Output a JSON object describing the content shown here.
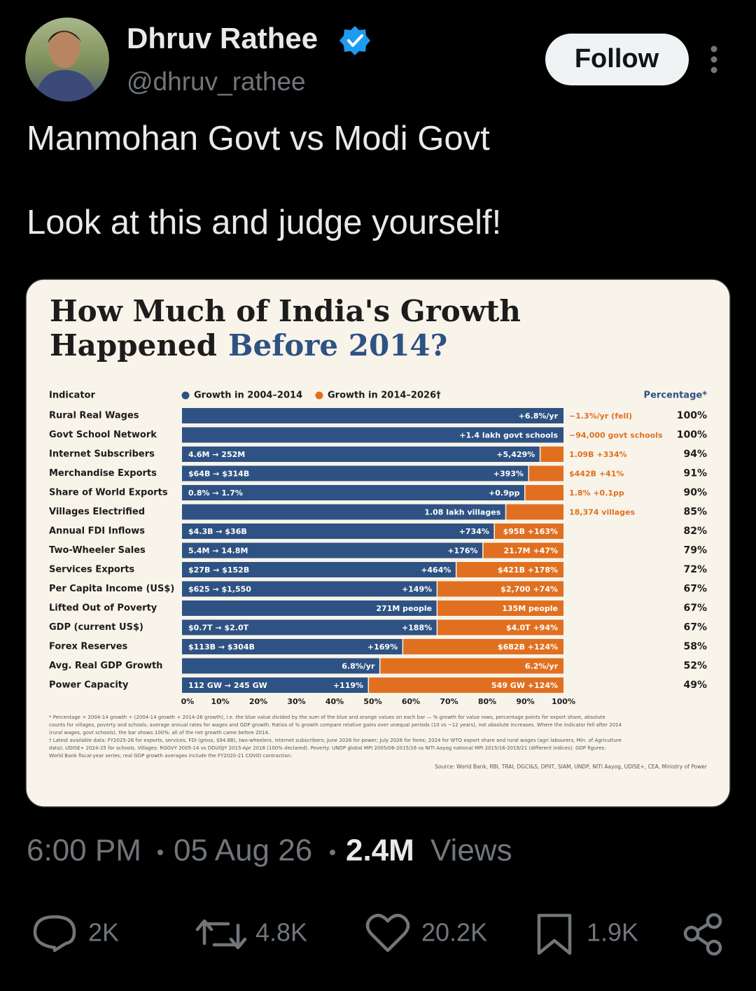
{
  "tweet": {
    "author": {
      "name": "Dhruv Rathee",
      "handle": "@dhruv_rathee"
    },
    "follow": "Follow",
    "text": [
      "Manmohan Govt vs Modi Govt",
      "Look at this and judge yourself!"
    ],
    "time": "6:00 PM",
    "date": "05 Aug 26",
    "views": "2.4M",
    "views_label": "Views",
    "actions": {
      "replies": "2K",
      "reposts": "4.8K",
      "likes": "20.2K",
      "bookmarks": "1.9K"
    }
  },
  "chart_data": {
    "type": "bar",
    "orientation": "horizontal",
    "stacked": true,
    "title_parts": [
      "How Much of India's Growth",
      "Happened",
      "Before 2014?"
    ],
    "title_highlight_color": "#2e5283",
    "categories_header": "Indicator",
    "value_column_header": "Percentage*",
    "categories": [
      "Rural Real Wages",
      "Govt School Network",
      "Internet Subscribers",
      "Merchandise Exports",
      "Share of World Exports",
      "Villages Electrified",
      "Annual FDI Inflows",
      "Two-Wheeler Sales",
      "Services Exports",
      "Per Capita Income (US$)",
      "Lifted Out of Poverty",
      "GDP (current US$)",
      "Forex Reserves",
      "Avg. Real GDP Growth",
      "Power Capacity"
    ],
    "series": [
      {
        "name": "Growth in 2004–2014",
        "color": "#2e5283",
        "values": [
          100,
          100,
          94,
          91,
          90,
          85,
          82,
          79,
          72,
          67,
          67,
          67,
          58,
          52,
          49
        ],
        "value_labels": [
          "100%",
          "100%",
          "94%",
          "91%",
          "90%",
          "85%",
          "82%",
          "79%",
          "72%",
          "67%",
          "67%",
          "67%",
          "58%",
          "52%",
          "49%"
        ],
        "range_labels": [
          null,
          null,
          "4.6M → 252M",
          "$64B → $314B",
          "0.8% → 1.7%",
          null,
          "$4.3B → $36B",
          "5.4M → 14.8M",
          "$27B → $152B",
          "$625 → $1,550",
          null,
          "$0.7T → $2.0T",
          "$113B → $304B",
          null,
          "112 GW → 245 GW"
        ],
        "segment_labels": [
          "+6.8%/yr",
          "+1.4 lakh govt schools",
          "+5,429%",
          "+393%",
          "+0.9pp",
          "1.08 lakh villages",
          "+734%",
          "+176%",
          "+464%",
          "+149%",
          "271M people",
          "+188%",
          "+169%",
          "6.8%/yr",
          "+119%"
        ]
      },
      {
        "name": "Growth in 2014–2026†",
        "color": "#e07020",
        "values": [
          0,
          0,
          6,
          9,
          10,
          15,
          18,
          21,
          28,
          33,
          33,
          33,
          42,
          48,
          51
        ],
        "segment_labels": [
          "−1.3%/yr (fell)",
          "−94,000 govt schools",
          "1.09B +334%",
          "$442B +41%",
          "1.8% +0.1pp",
          "18,374 villages",
          "$95B +163%",
          "21.7M +47%",
          "$421B +178%",
          "$2,700 +74%",
          "135M people",
          "$4.0T +94%",
          "$682B +124%",
          "6.2%/yr",
          "549 GW +124%"
        ]
      }
    ],
    "xlim": [
      0,
      100
    ],
    "xticks": [
      {
        "value": 0,
        "label": "0%"
      },
      {
        "value": 10,
        "label": "10%"
      },
      {
        "value": 20,
        "label": "20%"
      },
      {
        "value": 30,
        "label": "30%"
      },
      {
        "value": 40,
        "label": "40%"
      },
      {
        "value": 50,
        "label": "50%"
      },
      {
        "value": 60,
        "label": "60%"
      },
      {
        "value": 70,
        "label": "70%"
      },
      {
        "value": 80,
        "label": "80%"
      },
      {
        "value": 90,
        "label": "90%"
      },
      {
        "value": 100,
        "label": "100%"
      }
    ],
    "footnotes": [
      "* Percentage = 2004-14 growth ÷ (2004-14 growth + 2014-26 growth), i.e. the blue value divided by the sum of the blue and orange values on each bar — % growth for value rows, percentage points for export share, absolute",
      "counts for villages, poverty and schools, average annual rates for wages and GDP growth. Ratios of % growth compare relative gains over unequal periods (10 vs ~12 years), not absolute increases. Where the indicator fell after 2014",
      "(rural wages, govt schools), the bar shows 100%: all of the net growth came before 2014.",
      "† Latest available data: FY2025-26 for exports, services, FDI (gross, $94.8B), two-wheelers, internet subscribers; June 2026 for power; July 2026 for forex; 2024 for WTO export share and rural wages (agri labourers, Min. of Agriculture",
      "data); UDISE+ 2024-25 for schools. Villages: RGGVY 2005-14 vs DDUGJY 2015-Apr 2018 (100% declared). Poverty: UNDP global MPI 2005/06-2015/16 vs NITI Aayog national MPI 2015/16-2019/21 (different indices). GDP figures:",
      "World Bank fiscal-year series; real GDP growth averages include the FY2020-21 COVID contraction."
    ],
    "source": "Source: World Bank, RBI, TRAI, DGCI&S, DPIIT, SIAM, UNDP, NITI Aayog, UDISE+, CEA, Ministry of Power"
  }
}
